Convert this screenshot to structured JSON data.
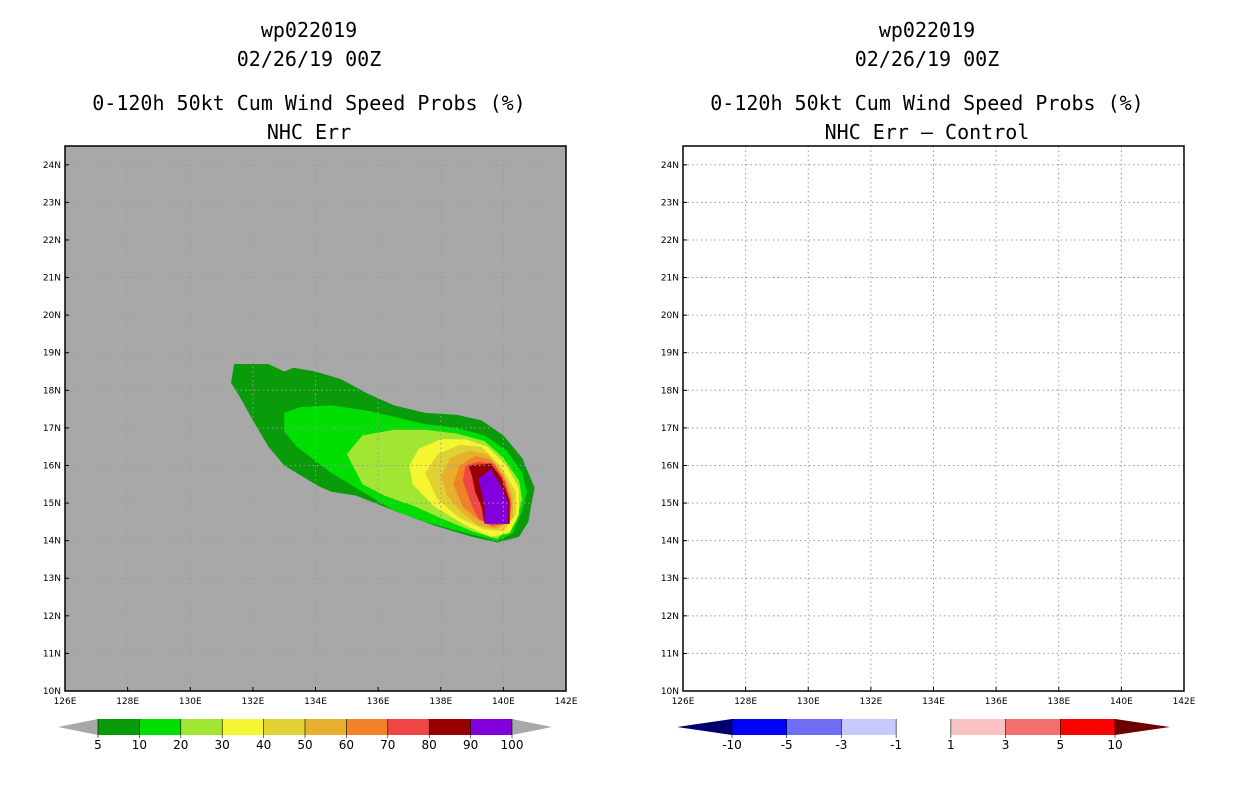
{
  "panels": [
    {
      "storm_id": "wp022019",
      "datetime": "02/26/19 00Z",
      "title": "0-120h 50kt Cum Wind Speed Probs (%)",
      "subtitle": "NHC Err"
    },
    {
      "storm_id": "wp022019",
      "datetime": "02/26/19 00Z",
      "title": "0-120h 50kt Cum Wind Speed Probs (%)",
      "subtitle": "NHC Err – Control"
    }
  ],
  "chart_data": [
    {
      "type": "heatmap",
      "title": "0-120h 50kt Cum Wind Speed Probs (%)",
      "subtitle": "NHC Err",
      "background_color": "#a8a8a8",
      "x_ticks": [
        "126E",
        "128E",
        "130E",
        "132E",
        "134E",
        "136E",
        "138E",
        "140E",
        "142E"
      ],
      "y_ticks": [
        "10N",
        "11N",
        "12N",
        "13N",
        "14N",
        "15N",
        "16N",
        "17N",
        "18N",
        "19N",
        "20N",
        "21N",
        "22N",
        "23N",
        "24N"
      ],
      "xlim": [
        126,
        142
      ],
      "ylim": [
        10,
        24.5
      ],
      "grid": true,
      "levels": [
        {
          "min": 5,
          "color": "#0a9b0a",
          "polygon": [
            [
              131.4,
              18.7
            ],
            [
              132.5,
              18.7
            ],
            [
              133.0,
              18.5
            ],
            [
              133.3,
              18.6
            ],
            [
              134.0,
              18.5
            ],
            [
              134.8,
              18.3
            ],
            [
              135.7,
              17.9
            ],
            [
              136.5,
              17.6
            ],
            [
              137.5,
              17.4
            ],
            [
              138.5,
              17.35
            ],
            [
              139.3,
              17.2
            ],
            [
              140.0,
              16.8
            ],
            [
              140.6,
              16.2
            ],
            [
              140.9,
              15.6
            ],
            [
              141.0,
              15.4
            ],
            [
              140.9,
              15.0
            ],
            [
              140.8,
              14.5
            ],
            [
              140.5,
              14.1
            ],
            [
              139.8,
              13.95
            ],
            [
              139.0,
              14.1
            ],
            [
              137.8,
              14.4
            ],
            [
              136.5,
              14.8
            ],
            [
              135.3,
              15.2
            ],
            [
              134.5,
              15.3
            ],
            [
              134.1,
              15.45
            ],
            [
              133.0,
              16.0
            ],
            [
              132.5,
              16.5
            ],
            [
              132.0,
              17.2
            ],
            [
              131.6,
              17.8
            ],
            [
              131.3,
              18.2
            ]
          ]
        },
        {
          "min": 10,
          "color": "#00dd00",
          "polygon": [
            [
              133.0,
              17.4
            ],
            [
              133.5,
              17.55
            ],
            [
              134.5,
              17.6
            ],
            [
              135.7,
              17.45
            ],
            [
              136.5,
              17.3
            ],
            [
              137.5,
              17.1
            ],
            [
              138.5,
              17.0
            ],
            [
              139.4,
              16.8
            ],
            [
              140.1,
              16.4
            ],
            [
              140.6,
              15.8
            ],
            [
              140.75,
              15.3
            ],
            [
              140.6,
              14.8
            ],
            [
              140.3,
              14.2
            ],
            [
              139.8,
              14.0
            ],
            [
              138.8,
              14.2
            ],
            [
              137.5,
              14.5
            ],
            [
              136.5,
              14.8
            ],
            [
              135.5,
              15.3
            ],
            [
              134.5,
              15.8
            ],
            [
              133.4,
              16.5
            ],
            [
              133.0,
              16.9
            ]
          ]
        },
        {
          "min": 20,
          "color": "#a0e632",
          "polygon": [
            [
              135.0,
              16.3
            ],
            [
              135.5,
              16.8
            ],
            [
              136.5,
              16.95
            ],
            [
              137.5,
              16.95
            ],
            [
              138.5,
              16.85
            ],
            [
              139.4,
              16.65
            ],
            [
              140.0,
              16.2
            ],
            [
              140.5,
              15.6
            ],
            [
              140.6,
              15.1
            ],
            [
              140.4,
              14.5
            ],
            [
              139.8,
              14.05
            ],
            [
              139.0,
              14.25
            ],
            [
              138.0,
              14.6
            ],
            [
              137.2,
              14.9
            ],
            [
              136.2,
              15.2
            ],
            [
              135.5,
              15.5
            ]
          ]
        },
        {
          "min": 30,
          "color": "#f5f532",
          "polygon": [
            [
              137.0,
              16.0
            ],
            [
              137.3,
              16.45
            ],
            [
              138.0,
              16.7
            ],
            [
              138.8,
              16.7
            ],
            [
              139.5,
              16.5
            ],
            [
              140.1,
              16.0
            ],
            [
              140.5,
              15.4
            ],
            [
              140.5,
              14.7
            ],
            [
              140.2,
              14.2
            ],
            [
              139.6,
              14.1
            ],
            [
              138.8,
              14.4
            ],
            [
              137.8,
              14.9
            ],
            [
              137.1,
              15.5
            ]
          ]
        },
        {
          "min": 40,
          "color": "#e0d232",
          "polygon": [
            [
              137.5,
              15.8
            ],
            [
              137.9,
              16.3
            ],
            [
              138.6,
              16.55
            ],
            [
              139.3,
              16.5
            ],
            [
              139.9,
              16.0
            ],
            [
              140.4,
              15.3
            ],
            [
              140.4,
              14.7
            ],
            [
              140.0,
              14.25
            ],
            [
              139.4,
              14.3
            ],
            [
              138.6,
              14.6
            ],
            [
              137.9,
              15.1
            ]
          ]
        },
        {
          "min": 50,
          "color": "#e6af2d",
          "polygon": [
            [
              138.0,
              15.7
            ],
            [
              138.3,
              16.2
            ],
            [
              138.9,
              16.4
            ],
            [
              139.5,
              16.3
            ],
            [
              140.0,
              15.8
            ],
            [
              140.3,
              15.2
            ],
            [
              140.3,
              14.6
            ],
            [
              139.8,
              14.3
            ],
            [
              139.2,
              14.4
            ],
            [
              138.6,
              14.8
            ],
            [
              138.2,
              15.2
            ]
          ]
        },
        {
          "min": 60,
          "color": "#f08228",
          "polygon": [
            [
              138.4,
              15.5
            ],
            [
              138.6,
              16.0
            ],
            [
              139.1,
              16.25
            ],
            [
              139.6,
              16.15
            ],
            [
              140.0,
              15.7
            ],
            [
              140.25,
              15.1
            ],
            [
              140.2,
              14.5
            ],
            [
              139.7,
              14.35
            ],
            [
              139.2,
              14.55
            ],
            [
              138.7,
              14.9
            ]
          ]
        },
        {
          "min": 70,
          "color": "#f04646",
          "polygon": [
            [
              138.7,
              15.6
            ],
            [
              138.8,
              16.0
            ],
            [
              139.2,
              16.1
            ],
            [
              139.7,
              16.05
            ],
            [
              140.05,
              15.6
            ],
            [
              140.25,
              15.0
            ],
            [
              140.2,
              14.45
            ],
            [
              139.6,
              14.4
            ],
            [
              139.2,
              14.6
            ],
            [
              139.0,
              14.9
            ]
          ]
        },
        {
          "min": 80,
          "color": "#960000",
          "polygon": [
            [
              138.9,
              16.0
            ],
            [
              139.6,
              16.05
            ],
            [
              139.95,
              15.65
            ],
            [
              140.2,
              15.05
            ],
            [
              140.2,
              14.45
            ],
            [
              139.4,
              14.45
            ],
            [
              139.3,
              14.9
            ],
            [
              139.1,
              15.3
            ],
            [
              139.0,
              15.7
            ]
          ]
        },
        {
          "min": 90,
          "color": "#8200dc",
          "polygon": [
            [
              139.2,
              15.65
            ],
            [
              139.6,
              15.9
            ],
            [
              139.9,
              15.5
            ],
            [
              140.15,
              15.0
            ],
            [
              140.15,
              14.45
            ],
            [
              139.4,
              14.45
            ],
            [
              139.4,
              14.9
            ],
            [
              139.3,
              15.3
            ]
          ]
        }
      ],
      "colorbar": {
        "colors": [
          "#a8a8a8",
          "#0a9b0a",
          "#00dd00",
          "#a0e632",
          "#f5f532",
          "#e0d232",
          "#e6af2d",
          "#f08228",
          "#f04646",
          "#960000",
          "#8200dc",
          "#a8a8a8"
        ],
        "labels": [
          "5",
          "10",
          "20",
          "30",
          "40",
          "50",
          "60",
          "70",
          "80",
          "90",
          "100"
        ]
      }
    },
    {
      "type": "heatmap",
      "title": "0-120h 50kt Cum Wind Speed Probs (%)",
      "subtitle": "NHC Err – Control",
      "background_color": "#ffffff",
      "x_ticks": [
        "126E",
        "128E",
        "130E",
        "132E",
        "134E",
        "136E",
        "138E",
        "140E",
        "142E"
      ],
      "y_ticks": [
        "10N",
        "11N",
        "12N",
        "13N",
        "14N",
        "15N",
        "16N",
        "17N",
        "18N",
        "19N",
        "20N",
        "21N",
        "22N",
        "23N",
        "24N"
      ],
      "xlim": [
        126,
        142
      ],
      "ylim": [
        10,
        24.5
      ],
      "grid": true,
      "levels": [],
      "colorbar": {
        "colors": [
          "#00006e",
          "#0000ff",
          "#6e6ef5",
          "#c8c8fa",
          "#ffffff",
          "#fac3c3",
          "#f56e6e",
          "#ff0000",
          "#6e0000"
        ],
        "labels": [
          "-10",
          "-5",
          "-3",
          "-1",
          "1",
          "3",
          "5",
          "10"
        ]
      }
    }
  ]
}
